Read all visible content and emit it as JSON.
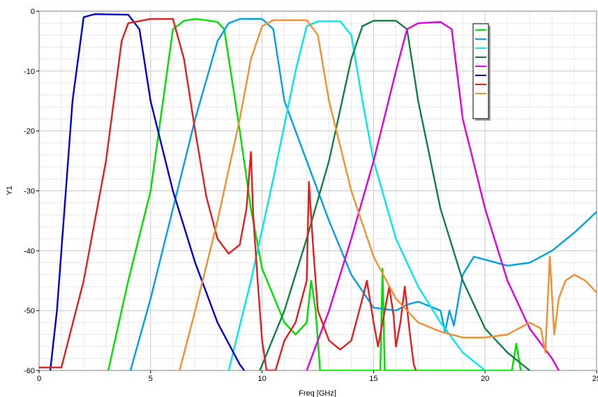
{
  "chart_data": {
    "type": "line",
    "title": "",
    "xlabel": "Freq [GHz]",
    "ylabel": "Y1",
    "xlim": [
      0,
      25
    ],
    "ylim": [
      -60,
      0
    ],
    "xticks": [
      0,
      5,
      10,
      15,
      20,
      25
    ],
    "xtick_labels": [
      "0",
      "5",
      "10",
      "15",
      "20",
      "25"
    ],
    "yticks": [
      0,
      -10,
      -20,
      -30,
      -40,
      -50,
      -60
    ],
    "ytick_labels": [
      "0",
      "-10",
      "-20",
      "-30",
      "-40",
      "-50",
      "-60"
    ],
    "grid": true,
    "legend": {
      "placement": "top-right",
      "entries_text_visible": false
    },
    "series": [
      {
        "color": "#00e000",
        "points": [
          [
            3.1,
            -60
          ],
          [
            4,
            -45
          ],
          [
            5,
            -30
          ],
          [
            6,
            -3
          ],
          [
            6.5,
            -1.6
          ],
          [
            7,
            -1.3
          ],
          [
            7.5,
            -1.5
          ],
          [
            8,
            -1.8
          ],
          [
            8.3,
            -3
          ],
          [
            9,
            -20
          ],
          [
            9.5,
            -33
          ],
          [
            10,
            -43
          ],
          [
            11,
            -52
          ],
          [
            11.5,
            -54
          ],
          [
            12,
            -52
          ],
          [
            12.2,
            -45
          ],
          [
            12.4,
            -50
          ],
          [
            12.6,
            -60
          ],
          [
            15.3,
            -60
          ],
          [
            15.4,
            -43
          ],
          [
            15.5,
            -60
          ],
          [
            21.2,
            -60
          ],
          [
            21.4,
            -55.5
          ],
          [
            21.6,
            -60
          ]
        ]
      },
      {
        "color": "#00a0e8",
        "points": [
          [
            4.1,
            -60
          ],
          [
            5,
            -48
          ],
          [
            6,
            -33
          ],
          [
            7,
            -18
          ],
          [
            8,
            -5
          ],
          [
            8.5,
            -2
          ],
          [
            9,
            -1.3
          ],
          [
            10,
            -1.3
          ],
          [
            10.5,
            -3
          ],
          [
            11,
            -15
          ],
          [
            12,
            -25
          ],
          [
            13,
            -35
          ],
          [
            14,
            -44
          ],
          [
            15,
            -49.5
          ],
          [
            16,
            -50
          ],
          [
            16.5,
            -49
          ],
          [
            17,
            -48.5
          ],
          [
            18,
            -50
          ],
          [
            18.2,
            -53.5
          ],
          [
            18.4,
            -50
          ],
          [
            18.6,
            -52.5
          ],
          [
            19,
            -44
          ],
          [
            19.5,
            -41
          ],
          [
            20,
            -41.5
          ],
          [
            21,
            -42.5
          ],
          [
            22,
            -42
          ],
          [
            23,
            -40
          ],
          [
            24,
            -37
          ],
          [
            25,
            -33.5
          ]
        ]
      },
      {
        "color": "#00e8e8",
        "points": [
          [
            8.5,
            -60
          ],
          [
            9.5,
            -45
          ],
          [
            10.5,
            -28
          ],
          [
            11.5,
            -10
          ],
          [
            12,
            -2.5
          ],
          [
            12.5,
            -1.7
          ],
          [
            13.5,
            -1.7
          ],
          [
            14,
            -4
          ],
          [
            14.5,
            -15
          ],
          [
            15,
            -25
          ],
          [
            16,
            -38
          ],
          [
            17,
            -46
          ],
          [
            18,
            -52
          ],
          [
            19,
            -57
          ],
          [
            20,
            -60
          ]
        ]
      },
      {
        "color": "#108040",
        "points": [
          [
            9.9,
            -60
          ],
          [
            11,
            -50
          ],
          [
            12,
            -38
          ],
          [
            13,
            -25
          ],
          [
            14,
            -8
          ],
          [
            14.5,
            -2.5
          ],
          [
            15,
            -1.6
          ],
          [
            16,
            -1.6
          ],
          [
            16.5,
            -3
          ],
          [
            17,
            -15
          ],
          [
            18,
            -33
          ],
          [
            19,
            -45
          ],
          [
            20,
            -53
          ],
          [
            21,
            -57
          ],
          [
            22,
            -60
          ]
        ]
      },
      {
        "color": "#e000e0",
        "points": [
          [
            12,
            -60
          ],
          [
            13,
            -50
          ],
          [
            14,
            -38
          ],
          [
            15,
            -25
          ],
          [
            16,
            -10
          ],
          [
            16.5,
            -3
          ],
          [
            17,
            -2
          ],
          [
            18,
            -1.8
          ],
          [
            18.5,
            -3
          ],
          [
            19,
            -18
          ],
          [
            20,
            -33
          ],
          [
            21,
            -45
          ],
          [
            22,
            -53
          ],
          [
            23,
            -58
          ],
          [
            23.3,
            -60
          ]
        ]
      },
      {
        "color": "#0000d0",
        "points": [
          [
            0.5,
            -60
          ],
          [
            0.8,
            -50
          ],
          [
            1.5,
            -15
          ],
          [
            2,
            -1
          ],
          [
            2.5,
            -0.5
          ],
          [
            4,
            -0.6
          ],
          [
            4.5,
            -3
          ],
          [
            5,
            -15
          ],
          [
            6,
            -30
          ],
          [
            7,
            -42
          ],
          [
            8,
            -52
          ],
          [
            9,
            -59
          ],
          [
            9.2,
            -60
          ]
        ]
      },
      {
        "color": "#e02020",
        "points": [
          [
            0,
            -59.5
          ],
          [
            1,
            -59.5
          ],
          [
            2,
            -45
          ],
          [
            3,
            -25
          ],
          [
            3.7,
            -5
          ],
          [
            4,
            -2
          ],
          [
            5,
            -1.3
          ],
          [
            6,
            -1.3
          ],
          [
            6.5,
            -8
          ],
          [
            7,
            -20
          ],
          [
            7.5,
            -31
          ],
          [
            8,
            -38
          ],
          [
            8.5,
            -40.5
          ],
          [
            9,
            -39
          ],
          [
            9.3,
            -33
          ],
          [
            9.5,
            -23.5
          ],
          [
            9.6,
            -34
          ],
          [
            9.8,
            -45
          ],
          [
            10,
            -55
          ],
          [
            10.2,
            -60
          ],
          [
            10.6,
            -60
          ],
          [
            11,
            -55
          ],
          [
            11.5,
            -52
          ],
          [
            12,
            -45
          ],
          [
            12.1,
            -28.5
          ],
          [
            12.3,
            -40
          ],
          [
            12.5,
            -50
          ],
          [
            13,
            -55
          ],
          [
            13.5,
            -56.5
          ],
          [
            14,
            -55
          ],
          [
            14.5,
            -48
          ],
          [
            14.7,
            -45
          ],
          [
            15,
            -52
          ],
          [
            15.2,
            -56
          ],
          [
            15.5,
            -50
          ],
          [
            15.7,
            -46
          ],
          [
            15.9,
            -51
          ],
          [
            16,
            -56
          ],
          [
            16.2,
            -52
          ],
          [
            16.4,
            -46
          ],
          [
            16.6,
            -53
          ],
          [
            16.8,
            -59
          ],
          [
            16.9,
            -60
          ]
        ]
      },
      {
        "color": "#f09030",
        "points": [
          [
            6.3,
            -60
          ],
          [
            7,
            -50
          ],
          [
            8,
            -35
          ],
          [
            9,
            -18
          ],
          [
            9.5,
            -8
          ],
          [
            10,
            -2.5
          ],
          [
            10.5,
            -1.5
          ],
          [
            12,
            -1.5
          ],
          [
            12.5,
            -4
          ],
          [
            13,
            -15
          ],
          [
            14,
            -30
          ],
          [
            15,
            -41
          ],
          [
            16,
            -48
          ],
          [
            17,
            -52
          ],
          [
            18,
            -53.5
          ],
          [
            19,
            -54.5
          ],
          [
            20,
            -54.5
          ],
          [
            21,
            -54
          ],
          [
            21.5,
            -53
          ],
          [
            22,
            -52
          ],
          [
            22.5,
            -53
          ],
          [
            22.7,
            -57
          ],
          [
            22.9,
            -41
          ],
          [
            23.1,
            -54
          ],
          [
            23.3,
            -48
          ],
          [
            23.6,
            -45
          ],
          [
            24,
            -44
          ],
          [
            24.5,
            -45
          ],
          [
            25,
            -47
          ]
        ]
      }
    ]
  }
}
